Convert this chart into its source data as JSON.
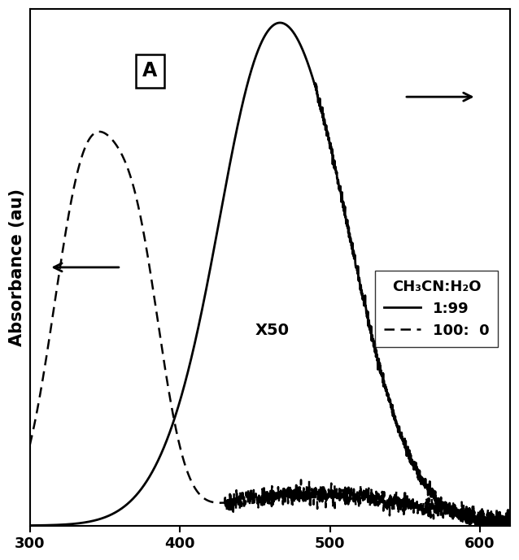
{
  "title": "",
  "xlabel": "",
  "ylabel": "Absorbance (au)",
  "xlim": [
    300,
    620
  ],
  "ylim": [
    0,
    1.05
  ],
  "background_color": "#ffffff",
  "solid_color": "#000000",
  "dashed_color": "#000000",
  "label_A": "A",
  "legend_title": "CH₃CN:H₂O",
  "legend_solid": "1:99",
  "legend_dashed": "100:  0",
  "annotation_x50": "X50",
  "xticks": [
    300,
    400,
    500,
    600
  ]
}
